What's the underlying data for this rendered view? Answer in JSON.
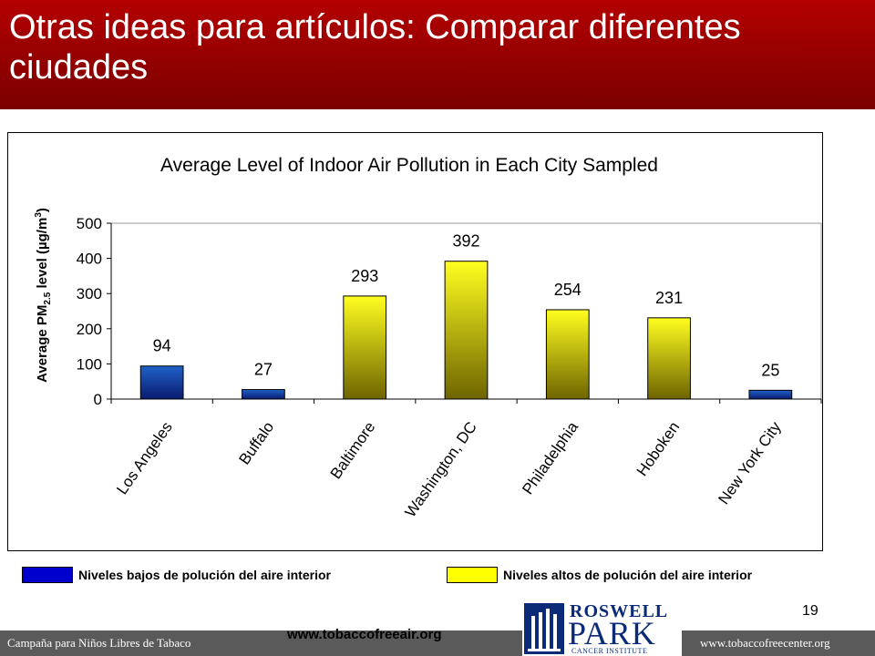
{
  "slide": {
    "title": "Otras ideas para artículos: Comparar diferentes ciudades",
    "page_number": "19"
  },
  "chart_data": {
    "type": "bar",
    "title": "Average Level of Indoor Air Pollution in Each City Sampled",
    "ylabel_parts": {
      "prefix": "Average PM",
      "sub": "2.5",
      "mid": " level (µg/m",
      "sup": "3",
      "suffix": ")"
    },
    "categories": [
      "Los Angeles",
      "Buffalo",
      "Baltimore",
      "Washington, DC",
      "Philadelphia",
      "Hoboken",
      "New York City"
    ],
    "values": [
      94,
      27,
      293,
      392,
      254,
      231,
      25
    ],
    "levels": [
      "low",
      "low",
      "high",
      "high",
      "high",
      "high",
      "low"
    ],
    "ylim": [
      0,
      500
    ],
    "yticks": [
      0,
      100,
      200,
      300,
      400,
      500
    ],
    "colors": {
      "low": "#0000cc",
      "high": "#d8d800"
    },
    "grid": false,
    "legend_position": "bottom"
  },
  "legend": {
    "low": {
      "label": "Niveles bajos de polución del aire interior",
      "color": "#0000cc"
    },
    "high": {
      "label": "Niveles altos de polución del aire interior",
      "color": "#ffff00"
    }
  },
  "footer": {
    "left": "Campaña para Niños Libres de Tabaco",
    "center": "www.tobaccofreeair.org",
    "right": "www.tobaccofreecenter.org"
  },
  "logo": {
    "line1": "ROSWELL",
    "line2": "PARK",
    "line3": "CANCER INSTITUTE",
    "icon": "building-icon"
  }
}
